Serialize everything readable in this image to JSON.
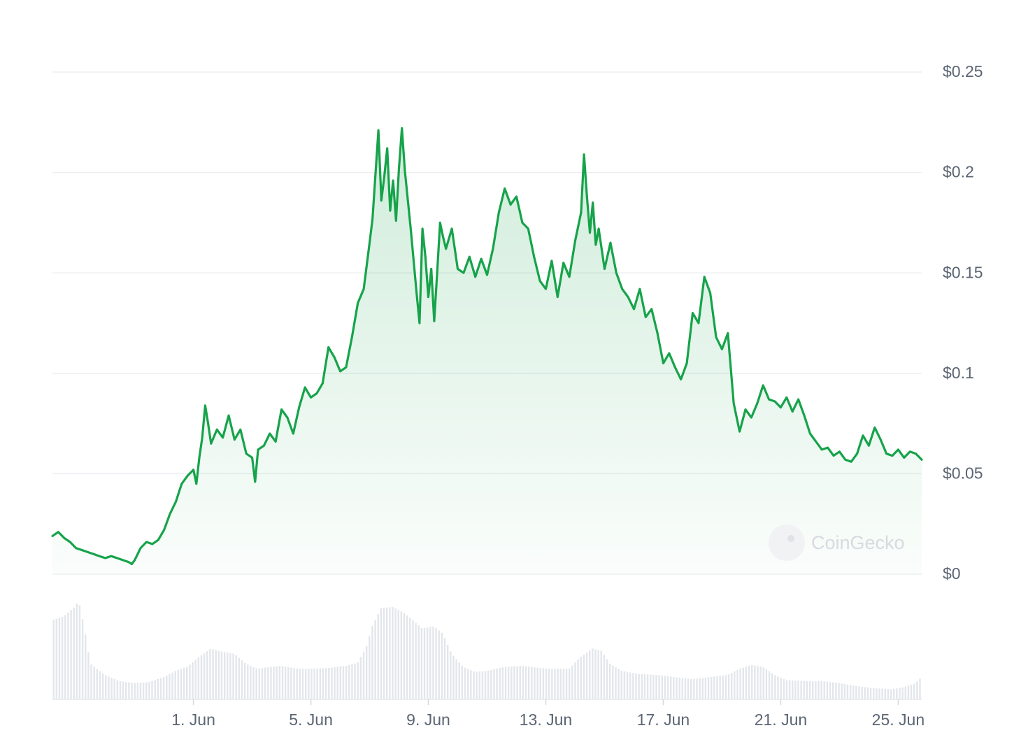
{
  "chart_data": {
    "type": "area",
    "title": "",
    "xlabel": "",
    "ylabel": "",
    "ylim": [
      0,
      0.25
    ],
    "y_ticks": [
      {
        "value": 0,
        "label": "$0"
      },
      {
        "value": 0.05,
        "label": "$0.05"
      },
      {
        "value": 0.1,
        "label": "$0.1"
      },
      {
        "value": 0.15,
        "label": "$0.15"
      },
      {
        "value": 0.2,
        "label": "$0.2"
      },
      {
        "value": 0.25,
        "label": "$0.25"
      }
    ],
    "x_range_days": [
      -3.8,
      25.8
    ],
    "x_ticks": [
      {
        "day": 1,
        "label": "1. Jun"
      },
      {
        "day": 5,
        "label": "5. Jun"
      },
      {
        "day": 9,
        "label": "9. Jun"
      },
      {
        "day": 13,
        "label": "13. Jun"
      },
      {
        "day": 17,
        "label": "17. Jun"
      },
      {
        "day": 21,
        "label": "21. Jun"
      },
      {
        "day": 25,
        "label": "25. Jun"
      }
    ],
    "grid": true,
    "series": [
      {
        "color": "#16a34a",
        "points": [
          [
            -3.8,
            0.019
          ],
          [
            -3.6,
            0.021
          ],
          [
            -3.4,
            0.018
          ],
          [
            -3.2,
            0.016
          ],
          [
            -3.0,
            0.013
          ],
          [
            -2.8,
            0.012
          ],
          [
            -2.6,
            0.011
          ],
          [
            -2.4,
            0.01
          ],
          [
            -2.2,
            0.009
          ],
          [
            -2.0,
            0.008
          ],
          [
            -1.8,
            0.009
          ],
          [
            -1.6,
            0.008
          ],
          [
            -1.4,
            0.007
          ],
          [
            -1.2,
            0.006
          ],
          [
            -1.1,
            0.005
          ],
          [
            -1.0,
            0.007
          ],
          [
            -0.8,
            0.013
          ],
          [
            -0.6,
            0.016
          ],
          [
            -0.4,
            0.015
          ],
          [
            -0.2,
            0.017
          ],
          [
            0.0,
            0.022
          ],
          [
            0.2,
            0.03
          ],
          [
            0.4,
            0.036
          ],
          [
            0.6,
            0.045
          ],
          [
            0.8,
            0.049
          ],
          [
            1.0,
            0.052
          ],
          [
            1.1,
            0.045
          ],
          [
            1.2,
            0.058
          ],
          [
            1.3,
            0.068
          ],
          [
            1.4,
            0.084
          ],
          [
            1.5,
            0.075
          ],
          [
            1.6,
            0.065
          ],
          [
            1.8,
            0.072
          ],
          [
            2.0,
            0.068
          ],
          [
            2.2,
            0.079
          ],
          [
            2.4,
            0.067
          ],
          [
            2.6,
            0.072
          ],
          [
            2.8,
            0.06
          ],
          [
            3.0,
            0.058
          ],
          [
            3.1,
            0.046
          ],
          [
            3.2,
            0.062
          ],
          [
            3.4,
            0.064
          ],
          [
            3.6,
            0.07
          ],
          [
            3.8,
            0.066
          ],
          [
            4.0,
            0.082
          ],
          [
            4.2,
            0.078
          ],
          [
            4.4,
            0.07
          ],
          [
            4.6,
            0.083
          ],
          [
            4.8,
            0.093
          ],
          [
            5.0,
            0.088
          ],
          [
            5.2,
            0.09
          ],
          [
            5.4,
            0.095
          ],
          [
            5.6,
            0.113
          ],
          [
            5.8,
            0.108
          ],
          [
            6.0,
            0.101
          ],
          [
            6.2,
            0.103
          ],
          [
            6.4,
            0.118
          ],
          [
            6.6,
            0.135
          ],
          [
            6.8,
            0.142
          ],
          [
            7.0,
            0.165
          ],
          [
            7.1,
            0.177
          ],
          [
            7.2,
            0.199
          ],
          [
            7.3,
            0.221
          ],
          [
            7.4,
            0.186
          ],
          [
            7.5,
            0.198
          ],
          [
            7.6,
            0.212
          ],
          [
            7.7,
            0.181
          ],
          [
            7.8,
            0.196
          ],
          [
            7.9,
            0.176
          ],
          [
            8.0,
            0.202
          ],
          [
            8.1,
            0.222
          ],
          [
            8.2,
            0.201
          ],
          [
            8.4,
            0.172
          ],
          [
            8.5,
            0.156
          ],
          [
            8.6,
            0.14
          ],
          [
            8.7,
            0.125
          ],
          [
            8.8,
            0.172
          ],
          [
            8.9,
            0.158
          ],
          [
            9.0,
            0.138
          ],
          [
            9.1,
            0.152
          ],
          [
            9.2,
            0.126
          ],
          [
            9.3,
            0.15
          ],
          [
            9.4,
            0.175
          ],
          [
            9.5,
            0.168
          ],
          [
            9.6,
            0.162
          ],
          [
            9.8,
            0.172
          ],
          [
            10.0,
            0.152
          ],
          [
            10.2,
            0.15
          ],
          [
            10.4,
            0.158
          ],
          [
            10.6,
            0.148
          ],
          [
            10.8,
            0.157
          ],
          [
            11.0,
            0.149
          ],
          [
            11.2,
            0.162
          ],
          [
            11.4,
            0.18
          ],
          [
            11.6,
            0.192
          ],
          [
            11.8,
            0.184
          ],
          [
            12.0,
            0.188
          ],
          [
            12.2,
            0.175
          ],
          [
            12.4,
            0.172
          ],
          [
            12.6,
            0.158
          ],
          [
            12.8,
            0.146
          ],
          [
            13.0,
            0.142
          ],
          [
            13.2,
            0.156
          ],
          [
            13.4,
            0.138
          ],
          [
            13.6,
            0.155
          ],
          [
            13.8,
            0.148
          ],
          [
            14.0,
            0.166
          ],
          [
            14.2,
            0.18
          ],
          [
            14.3,
            0.209
          ],
          [
            14.4,
            0.188
          ],
          [
            14.5,
            0.17
          ],
          [
            14.6,
            0.185
          ],
          [
            14.7,
            0.164
          ],
          [
            14.8,
            0.172
          ],
          [
            15.0,
            0.152
          ],
          [
            15.2,
            0.165
          ],
          [
            15.4,
            0.15
          ],
          [
            15.6,
            0.142
          ],
          [
            15.8,
            0.138
          ],
          [
            16.0,
            0.132
          ],
          [
            16.2,
            0.142
          ],
          [
            16.4,
            0.128
          ],
          [
            16.6,
            0.132
          ],
          [
            16.8,
            0.12
          ],
          [
            17.0,
            0.105
          ],
          [
            17.2,
            0.11
          ],
          [
            17.4,
            0.103
          ],
          [
            17.6,
            0.097
          ],
          [
            17.8,
            0.105
          ],
          [
            18.0,
            0.13
          ],
          [
            18.2,
            0.125
          ],
          [
            18.4,
            0.148
          ],
          [
            18.6,
            0.14
          ],
          [
            18.8,
            0.118
          ],
          [
            19.0,
            0.112
          ],
          [
            19.2,
            0.12
          ],
          [
            19.4,
            0.085
          ],
          [
            19.6,
            0.071
          ],
          [
            19.8,
            0.082
          ],
          [
            20.0,
            0.078
          ],
          [
            20.2,
            0.085
          ],
          [
            20.4,
            0.094
          ],
          [
            20.6,
            0.087
          ],
          [
            20.8,
            0.086
          ],
          [
            21.0,
            0.083
          ],
          [
            21.2,
            0.088
          ],
          [
            21.4,
            0.081
          ],
          [
            21.6,
            0.087
          ],
          [
            21.8,
            0.079
          ],
          [
            22.0,
            0.07
          ],
          [
            22.2,
            0.066
          ],
          [
            22.4,
            0.062
          ],
          [
            22.6,
            0.063
          ],
          [
            22.8,
            0.059
          ],
          [
            23.0,
            0.061
          ],
          [
            23.2,
            0.057
          ],
          [
            23.4,
            0.056
          ],
          [
            23.6,
            0.06
          ],
          [
            23.8,
            0.069
          ],
          [
            24.0,
            0.064
          ],
          [
            24.2,
            0.073
          ],
          [
            24.4,
            0.067
          ],
          [
            24.6,
            0.06
          ],
          [
            24.8,
            0.059
          ],
          [
            25.0,
            0.062
          ],
          [
            25.2,
            0.058
          ],
          [
            25.4,
            0.061
          ],
          [
            25.6,
            0.06
          ],
          [
            25.8,
            0.057
          ]
        ]
      }
    ],
    "volume": {
      "points": [
        [
          -3.8,
          0.78
        ],
        [
          -3.4,
          0.82
        ],
        [
          -3.0,
          0.92
        ],
        [
          -2.9,
          0.98
        ],
        [
          -2.7,
          0.7
        ],
        [
          -2.5,
          0.35
        ],
        [
          -2.0,
          0.24
        ],
        [
          -1.5,
          0.18
        ],
        [
          -1.0,
          0.16
        ],
        [
          -0.5,
          0.17
        ],
        [
          0.0,
          0.22
        ],
        [
          0.4,
          0.28
        ],
        [
          0.8,
          0.32
        ],
        [
          1.2,
          0.42
        ],
        [
          1.6,
          0.5
        ],
        [
          2.0,
          0.47
        ],
        [
          2.4,
          0.45
        ],
        [
          2.8,
          0.35
        ],
        [
          3.2,
          0.3
        ],
        [
          3.6,
          0.32
        ],
        [
          4.0,
          0.33
        ],
        [
          4.6,
          0.3
        ],
        [
          5.0,
          0.3
        ],
        [
          5.6,
          0.31
        ],
        [
          6.2,
          0.33
        ],
        [
          6.6,
          0.36
        ],
        [
          6.9,
          0.52
        ],
        [
          7.1,
          0.72
        ],
        [
          7.4,
          0.9
        ],
        [
          7.8,
          0.91
        ],
        [
          8.2,
          0.85
        ],
        [
          8.4,
          0.8
        ],
        [
          8.8,
          0.7
        ],
        [
          9.2,
          0.72
        ],
        [
          9.5,
          0.65
        ],
        [
          9.8,
          0.45
        ],
        [
          10.2,
          0.32
        ],
        [
          10.6,
          0.27
        ],
        [
          11.0,
          0.28
        ],
        [
          11.6,
          0.32
        ],
        [
          12.2,
          0.33
        ],
        [
          12.8,
          0.31
        ],
        [
          13.2,
          0.3
        ],
        [
          13.8,
          0.3
        ],
        [
          14.2,
          0.42
        ],
        [
          14.6,
          0.5
        ],
        [
          14.9,
          0.48
        ],
        [
          15.2,
          0.35
        ],
        [
          15.6,
          0.28
        ],
        [
          16.2,
          0.25
        ],
        [
          16.8,
          0.24
        ],
        [
          17.4,
          0.22
        ],
        [
          18.0,
          0.2
        ],
        [
          18.6,
          0.22
        ],
        [
          19.2,
          0.24
        ],
        [
          19.6,
          0.3
        ],
        [
          20.0,
          0.34
        ],
        [
          20.4,
          0.32
        ],
        [
          20.8,
          0.24
        ],
        [
          21.2,
          0.19
        ],
        [
          21.8,
          0.18
        ],
        [
          22.4,
          0.18
        ],
        [
          23.0,
          0.16
        ],
        [
          23.6,
          0.13
        ],
        [
          24.2,
          0.11
        ],
        [
          24.8,
          0.1
        ],
        [
          25.2,
          0.12
        ],
        [
          25.6,
          0.16
        ],
        [
          25.8,
          0.22
        ]
      ]
    }
  },
  "watermark": {
    "text": "CoinGecko"
  }
}
